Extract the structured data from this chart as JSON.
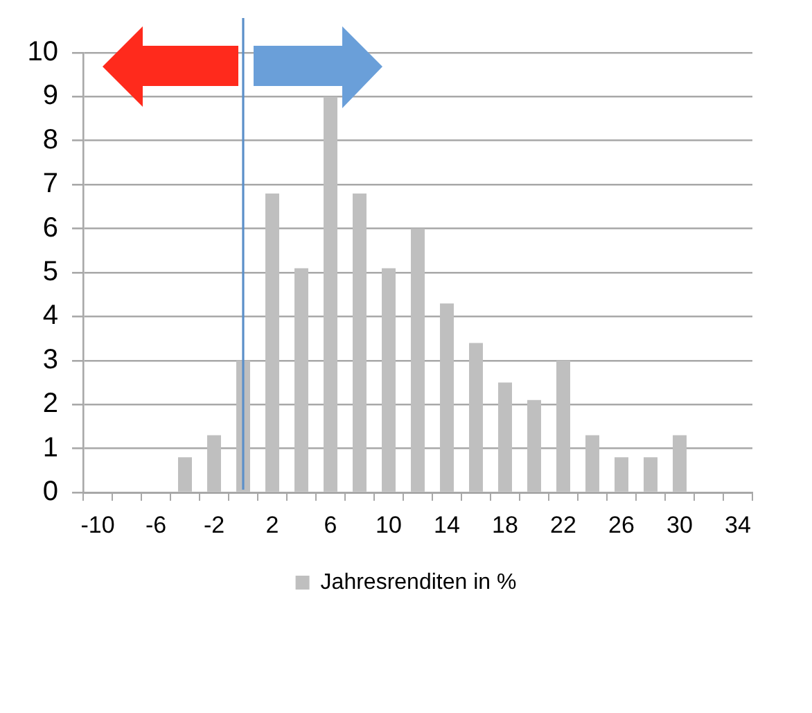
{
  "chart_data": {
    "type": "bar",
    "x": [
      -4,
      -2,
      0,
      2,
      4,
      6,
      8,
      10,
      12,
      14,
      16,
      18,
      20,
      22,
      24,
      26,
      28,
      30
    ],
    "series": [
      {
        "name": "Jahresrenditen in %",
        "color": "#bfbfbf",
        "values": [
          0.8,
          1.3,
          3,
          6.8,
          5.1,
          9,
          6.8,
          5.1,
          6,
          4.3,
          3.4,
          2.5,
          2.1,
          3,
          1.3,
          0.8,
          0.8,
          1.3
        ]
      }
    ],
    "xlim": [
      -11,
      35
    ],
    "xticks": [
      {
        "value": -11,
        "label": null
      },
      -10,
      {
        "value": -9,
        "label": null
      },
      {
        "value": -7,
        "label": null
      },
      -6,
      {
        "value": -5,
        "label": null
      },
      {
        "value": -3,
        "label": null
      },
      -2,
      {
        "value": -1,
        "label": null
      },
      {
        "value": 1,
        "label": null
      },
      2,
      {
        "value": 3,
        "label": null
      },
      {
        "value": 5,
        "label": null
      },
      6,
      {
        "value": 7,
        "label": null
      },
      {
        "value": 9,
        "label": null
      },
      10,
      {
        "value": 11,
        "label": null
      },
      {
        "value": 13,
        "label": null
      },
      14,
      {
        "value": 15,
        "label": null
      },
      {
        "value": 17,
        "label": null
      },
      18,
      {
        "value": 19,
        "label": null
      },
      {
        "value": 21,
        "label": null
      },
      22,
      {
        "value": 23,
        "label": null
      },
      {
        "value": 25,
        "label": null
      },
      26,
      {
        "value": 27,
        "label": null
      },
      {
        "value": 29,
        "label": null
      },
      30,
      {
        "value": 31,
        "label": null
      },
      {
        "value": 33,
        "label": null
      },
      34,
      {
        "value": 35,
        "label": null
      }
    ],
    "ylim": [
      0,
      10
    ],
    "yticks": [
      0,
      1,
      2,
      3,
      4,
      5,
      6,
      7,
      8,
      9,
      10
    ],
    "grid": "y",
    "legend": "bottom",
    "ref_lines": [
      {
        "axis": "x",
        "value": 0,
        "color": "#5b8fc9"
      }
    ]
  }
}
